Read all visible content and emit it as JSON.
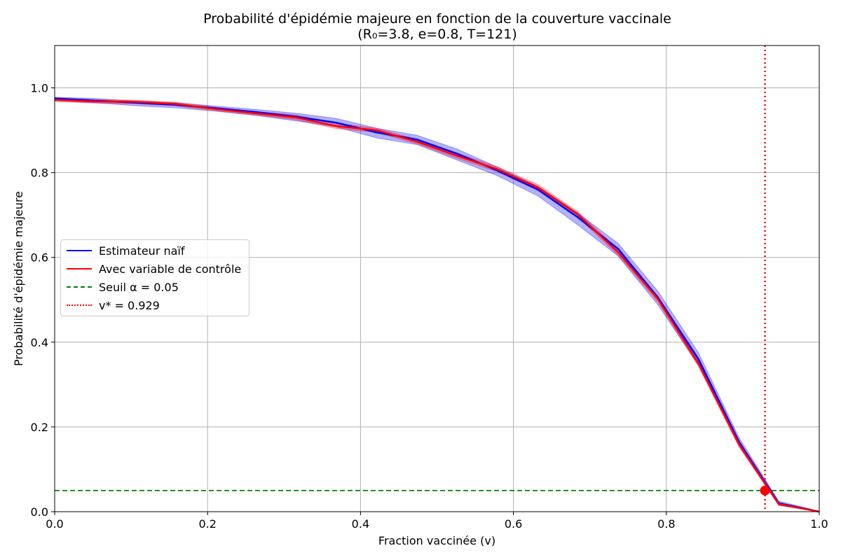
{
  "title": "Probabilité d'épidémie majeure en fonction de la couverture vaccinale",
  "subtitle": "(R₀=3.8, e=0.8, T=121)",
  "chart_data": {
    "type": "line",
    "xlabel": "Fraction vaccinée (v)",
    "ylabel": "Probabilité d'épidémie majeure",
    "xlim": [
      0,
      1.0
    ],
    "ylim": [
      0,
      1.1
    ],
    "xticks": [
      "0.0",
      "0.2",
      "0.4",
      "0.6",
      "0.8",
      "1.0"
    ],
    "yticks": [
      "0.0",
      "0.2",
      "0.4",
      "0.6",
      "0.8",
      "1.0"
    ],
    "grid": true,
    "legend_position": "center-left",
    "x": [
      0,
      0.053,
      0.105,
      0.158,
      0.211,
      0.263,
      0.316,
      0.368,
      0.421,
      0.474,
      0.526,
      0.579,
      0.632,
      0.684,
      0.737,
      0.789,
      0.842,
      0.895,
      0.947,
      1.0
    ],
    "series": [
      {
        "name": "Estimateur naïf",
        "color": "#0000ff",
        "style": "solid",
        "values": [
          0.975,
          0.97,
          0.965,
          0.96,
          0.952,
          0.943,
          0.932,
          0.918,
          0.895,
          0.878,
          0.845,
          0.805,
          0.76,
          0.695,
          0.62,
          0.505,
          0.36,
          0.165,
          0.02,
          0.0
        ],
        "ci_lower": [
          0.97,
          0.965,
          0.958,
          0.953,
          0.945,
          0.935,
          0.922,
          0.908,
          0.882,
          0.866,
          0.83,
          0.793,
          0.745,
          0.677,
          0.603,
          0.488,
          0.345,
          0.155,
          0.015,
          0.0
        ],
        "ci_upper": [
          0.978,
          0.975,
          0.969,
          0.965,
          0.957,
          0.949,
          0.94,
          0.928,
          0.905,
          0.888,
          0.856,
          0.813,
          0.768,
          0.705,
          0.633,
          0.52,
          0.375,
          0.175,
          0.025,
          0.001
        ]
      },
      {
        "name": "Avec variable de contrôle",
        "color": "#ff0000",
        "style": "solid",
        "values": [
          0.972,
          0.968,
          0.967,
          0.962,
          0.95,
          0.94,
          0.93,
          0.91,
          0.9,
          0.873,
          0.84,
          0.808,
          0.765,
          0.702,
          0.612,
          0.502,
          0.35,
          0.16,
          0.018,
          0.0
        ],
        "ci_lower": [
          0.968,
          0.964,
          0.963,
          0.958,
          0.946,
          0.936,
          0.925,
          0.904,
          0.895,
          0.868,
          0.834,
          0.802,
          0.758,
          0.696,
          0.605,
          0.495,
          0.343,
          0.153,
          0.015,
          0.0
        ],
        "ci_upper": [
          0.976,
          0.972,
          0.971,
          0.966,
          0.954,
          0.944,
          0.936,
          0.916,
          0.905,
          0.878,
          0.846,
          0.814,
          0.772,
          0.708,
          0.619,
          0.509,
          0.357,
          0.167,
          0.021,
          0.001
        ]
      }
    ],
    "threshold": {
      "name": "Seuil α = 0.05",
      "value": 0.05,
      "color": "#008000",
      "style": "dashed"
    },
    "vstar": {
      "name": "v* = 0.929",
      "value": 0.929,
      "color": "#ff0000",
      "style": "dotted",
      "marker_y": 0.05
    }
  }
}
